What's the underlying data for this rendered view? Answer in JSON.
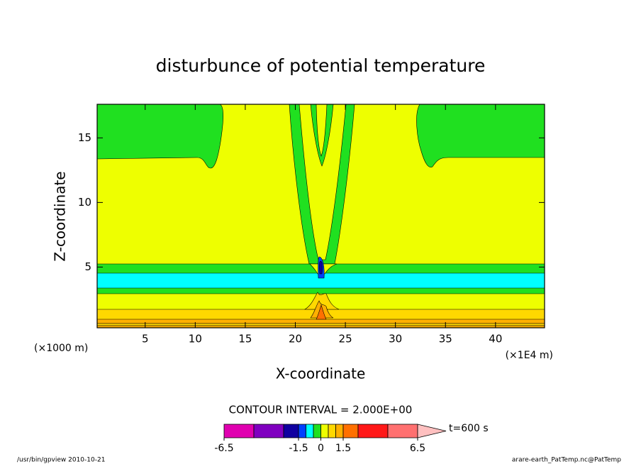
{
  "chart_data": {
    "type": "contour",
    "title": "disturbunce of potential temperature",
    "xlabel": "X-coordinate",
    "ylabel": "Z-coordinate",
    "x_unit_left": "(×1000 m)",
    "x_unit_right": "(×1E4 m)",
    "xlim": [
      0.2,
      44.9
    ],
    "xticks": [
      5,
      10,
      15,
      20,
      25,
      30,
      35,
      40
    ],
    "ylim": [
      0.3,
      17.6
    ],
    "yticks": [
      5,
      10,
      15
    ],
    "contour_interval": "CONTOUR INTERVAL = 2.000E+00",
    "time_label": "t=600 s",
    "colorbar": {
      "levels": [
        -6.5,
        -4.5,
        -2.5,
        -1.5,
        -1,
        -0.5,
        0,
        0.5,
        1,
        1.5,
        2.5,
        4.5,
        6.5
      ],
      "colors": [
        "#e000b0",
        "#8000c0",
        "#1000a0",
        "#0040ff",
        "#00ffff",
        "#20e020",
        "#eeff00",
        "#ffd800",
        "#ffb000",
        "#ff7000",
        "#ff1818",
        "#ff7070"
      ],
      "over_color": "#ffc0c0",
      "ticks": [
        -6.5,
        -1.5,
        0,
        1.5,
        6.5
      ]
    },
    "footer_left": "/usr/bin/gpview  2010-10-21",
    "footer_right": "arare-earth_PatTemp.nc@PatTemp"
  }
}
